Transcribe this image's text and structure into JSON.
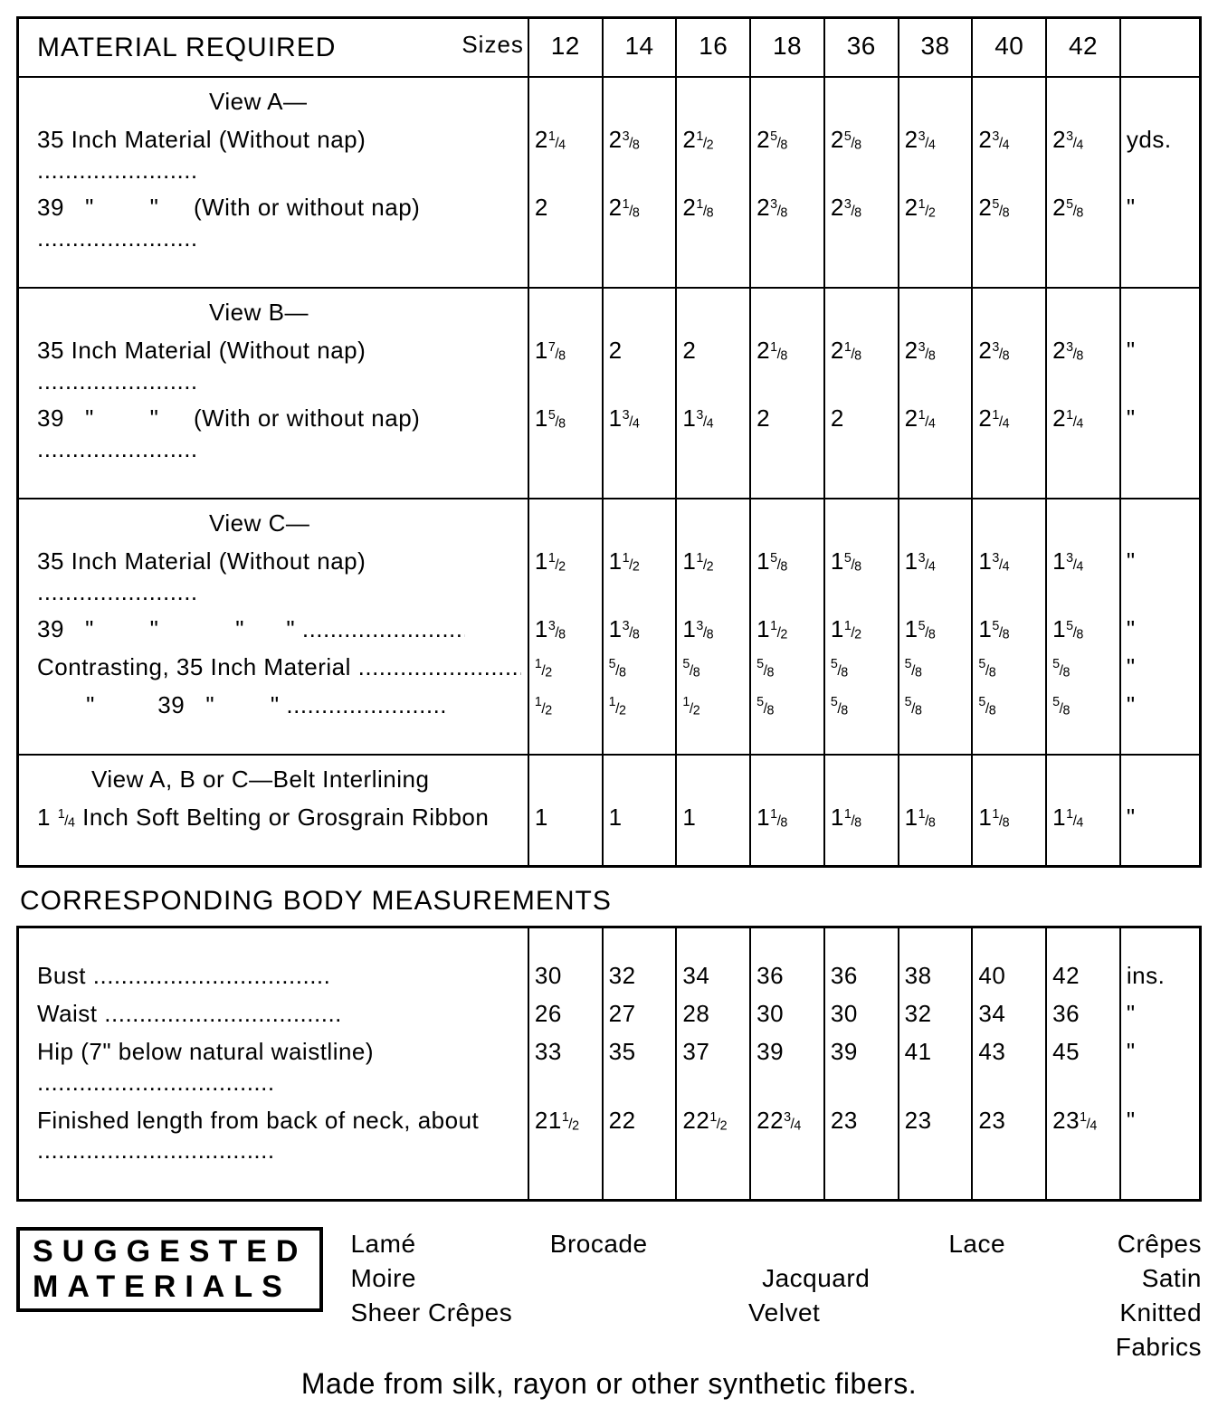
{
  "colors": {
    "fg": "#000000",
    "bg": "#ffffff",
    "border": "#000000"
  },
  "header": {
    "title": "MATERIAL REQUIRED",
    "sizes_label": "Sizes"
  },
  "sizes": [
    "12",
    "14",
    "16",
    "18",
    "36",
    "38",
    "40",
    "42"
  ],
  "unit_first": "yds.",
  "unit_ditto": "\"",
  "views": [
    {
      "title": "View A—",
      "rows": [
        {
          "label": "35 Inch Material (Without nap)",
          "leaders": true,
          "vals": [
            "2 1/4",
            "2 3/8",
            "2 1/2",
            "2 5/8",
            "2 5/8",
            "2 3/4",
            "2 3/4",
            "2 3/4"
          ],
          "unit": "yds."
        },
        {
          "label": "39   \"        \"     (With or without nap)",
          "leaders": true,
          "vals": [
            "2",
            "2 1/8",
            "2 1/8",
            "2 3/8",
            "2 3/8",
            "2 1/2",
            "2 5/8",
            "2 5/8"
          ],
          "unit": "\""
        }
      ]
    },
    {
      "title": "View B—",
      "rows": [
        {
          "label": "35 Inch Material (Without nap)",
          "leaders": true,
          "vals": [
            "1 7/8",
            "2",
            "2",
            "2 1/8",
            "2 1/8",
            "2 3/8",
            "2 3/8",
            "2 3/8"
          ],
          "unit": "\""
        },
        {
          "label": "39   \"        \"     (With or without nap)",
          "leaders": true,
          "vals": [
            "1 5/8",
            "1 3/4",
            "1 3/4",
            "2",
            "2",
            "2 1/4",
            "2 1/4",
            "2 1/4"
          ],
          "unit": "\""
        }
      ]
    },
    {
      "title": "View C—",
      "rows": [
        {
          "label": "35 Inch Material (Without nap)",
          "leaders": true,
          "vals": [
            "1 1/2",
            "1 1/2",
            "1 1/2",
            "1 5/8",
            "1 5/8",
            "1 3/4",
            "1 3/4",
            "1 3/4"
          ],
          "unit": "\""
        },
        {
          "label": "39   \"        \"           \"      \"",
          "leaders": true,
          "vals": [
            "1 3/8",
            "1 3/8",
            "1 3/8",
            "1 1/2",
            "1 1/2",
            "1 5/8",
            "1 5/8",
            "1 5/8"
          ],
          "unit": "\""
        },
        {
          "label": "Contrasting, 35 Inch Material",
          "leaders": true,
          "vals": [
            "1/2",
            "5/8",
            "5/8",
            "5/8",
            "5/8",
            "5/8",
            "5/8",
            "5/8"
          ],
          "unit": "\""
        },
        {
          "label": "       \"         39   \"        \"",
          "leaders": true,
          "vals": [
            "1/2",
            "1/2",
            "1/2",
            "5/8",
            "5/8",
            "5/8",
            "5/8",
            "5/8"
          ],
          "unit": "\""
        }
      ]
    },
    {
      "title": "View A, B or C—Belt Interlining",
      "title_indent_small": true,
      "rows": [
        {
          "label": "1 1/4 Inch Soft Belting or Grosgrain Ribbon",
          "leaders": false,
          "vals": [
            "1",
            "1",
            "1",
            "1 1/8",
            "1 1/8",
            "1 1/8",
            "1 1/8",
            "1 1/4"
          ],
          "unit": "\""
        }
      ]
    }
  ],
  "body_meas": {
    "title": "CORRESPONDING BODY MEASUREMENTS",
    "rows": [
      {
        "label": "Bust",
        "leaders": true,
        "vals": [
          "30",
          "32",
          "34",
          "36",
          "36",
          "38",
          "40",
          "42"
        ],
        "unit": "ins."
      },
      {
        "label": "Waist",
        "leaders": true,
        "vals": [
          "26",
          "27",
          "28",
          "30",
          "30",
          "32",
          "34",
          "36"
        ],
        "unit": "\""
      },
      {
        "label": "Hip (7\" below natural waistline)",
        "leaders": true,
        "vals": [
          "33",
          "35",
          "37",
          "39",
          "39",
          "41",
          "43",
          "45"
        ],
        "unit": "\""
      },
      {
        "label": "Finished length from back of neck, about",
        "leaders": true,
        "vals": [
          "21 1/2",
          "22",
          "22 1/2",
          "22 3/4",
          "23",
          "23",
          "23",
          "23 1/4"
        ],
        "unit": "\""
      }
    ]
  },
  "suggested": {
    "box_line1": "SUGGESTED",
    "box_line2": "MATERIALS",
    "grid": [
      [
        "Lamé",
        "Brocade",
        "",
        "Lace",
        "Crêpes"
      ],
      [
        "Moire",
        "",
        "Jacquard",
        "",
        "Satin"
      ],
      [
        "Sheer Crêpes",
        "",
        "Velvet",
        "",
        "Knitted Fabrics"
      ]
    ],
    "footer": "Made from silk, rayon or other synthetic fibers."
  }
}
